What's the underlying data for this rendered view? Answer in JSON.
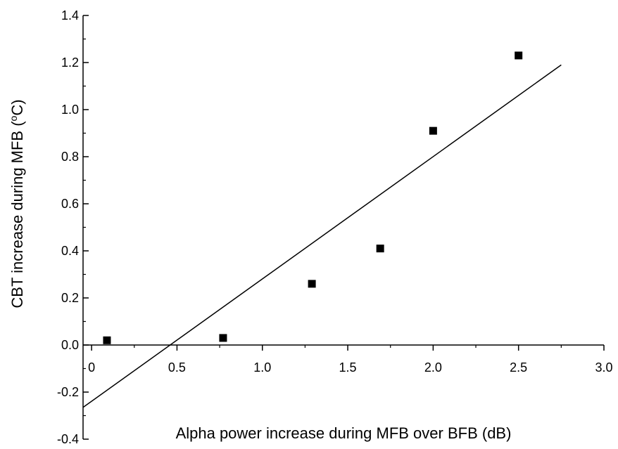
{
  "chart_data": {
    "type": "scatter",
    "title": "",
    "xlabel": "Alpha power increase during MFB over BFB (dB)",
    "ylabel_main": "CBT increase during MFB (",
    "ylabel_sup": "o",
    "ylabel_end": "C)",
    "xlim": [
      -0.05,
      3.0
    ],
    "ylim": [
      -0.4,
      1.4
    ],
    "x_ticks": [
      0,
      0.5,
      1.0,
      1.5,
      2.0,
      2.5,
      3.0
    ],
    "x_tick_labels": [
      "0",
      "0.5",
      "1.0",
      "1.5",
      "2.0",
      "2.5",
      "3.0"
    ],
    "y_ticks": [
      -0.4,
      -0.2,
      0.0,
      0.2,
      0.4,
      0.6,
      0.8,
      1.0,
      1.2,
      1.4
    ],
    "y_tick_labels": [
      "-0.4",
      "-0.2",
      "0.0",
      "0.2",
      "0.4",
      "0.6",
      "0.8",
      "1.0",
      "1.2",
      "1.4"
    ],
    "grid": false,
    "marker": "square",
    "colors": {
      "marker": "#000000",
      "line": "#000000",
      "axis": "#000000"
    },
    "series": [
      {
        "points": [
          {
            "x": 0.09,
            "y": 0.02
          },
          {
            "x": 0.77,
            "y": 0.03
          },
          {
            "x": 1.29,
            "y": 0.26
          },
          {
            "x": 1.69,
            "y": 0.41
          },
          {
            "x": 2.0,
            "y": 0.91
          },
          {
            "x": 2.5,
            "y": 1.23
          }
        ]
      }
    ],
    "fit_line": {
      "x": [
        -0.05,
        2.75
      ],
      "y": [
        -0.265,
        1.19
      ]
    }
  }
}
